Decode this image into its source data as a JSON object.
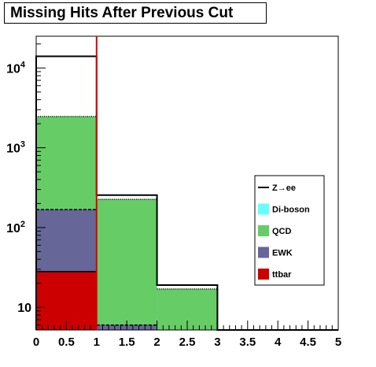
{
  "chart_data": {
    "type": "bar",
    "title": "Missing Hits After Previous Cut",
    "xlabel": "",
    "ylabel": "",
    "xlim": [
      0,
      5
    ],
    "ylim": [
      5.2,
      25000
    ],
    "ylog": true,
    "bin_edges": [
      0,
      1,
      2,
      3,
      4,
      5
    ],
    "x_tick_labels": [
      "0",
      "0.5",
      "1",
      "1.5",
      "2",
      "2.5",
      "3",
      "3.5",
      "4",
      "4.5",
      "5"
    ],
    "y_tick_labels": [
      {
        "base": "10",
        "exp": ""
      },
      {
        "base": "10",
        "exp": "2"
      },
      {
        "base": "10",
        "exp": "3"
      },
      {
        "base": "10",
        "exp": "4"
      }
    ],
    "cut_line_x": 1,
    "stack": [
      {
        "name": "ttbar",
        "color": "#cc0000",
        "line": "solid",
        "values": [
          28,
          0,
          0,
          0,
          0
        ]
      },
      {
        "name": "EWK",
        "color": "#666699",
        "line": "dashed",
        "values": [
          140,
          6,
          0,
          0,
          0
        ]
      },
      {
        "name": "QCD",
        "color": "#66cc66",
        "line": "dotted",
        "values": [
          2300,
          220,
          17,
          0,
          0
        ]
      },
      {
        "name": "Di-boson",
        "color": "#66ffff",
        "line": "dashdot",
        "values": [
          0,
          0,
          0,
          0,
          0
        ]
      }
    ],
    "total": {
      "name": "Z→ee",
      "color": "#000000",
      "values": [
        14000,
        255,
        19,
        0,
        0
      ]
    },
    "legend": {
      "placement": "right",
      "entries": [
        {
          "label": "Z→ee",
          "swatch": "line",
          "color": "#000000"
        },
        {
          "label": "Di-boson",
          "swatch": "fill",
          "color": "#66ffff"
        },
        {
          "label": "QCD",
          "swatch": "fill",
          "color": "#66cc66"
        },
        {
          "label": "EWK",
          "swatch": "fill",
          "color": "#666699"
        },
        {
          "label": "ttbar",
          "swatch": "fill",
          "color": "#cc0000"
        }
      ]
    },
    "colors": {
      "cut_line": "#dd0000"
    }
  }
}
